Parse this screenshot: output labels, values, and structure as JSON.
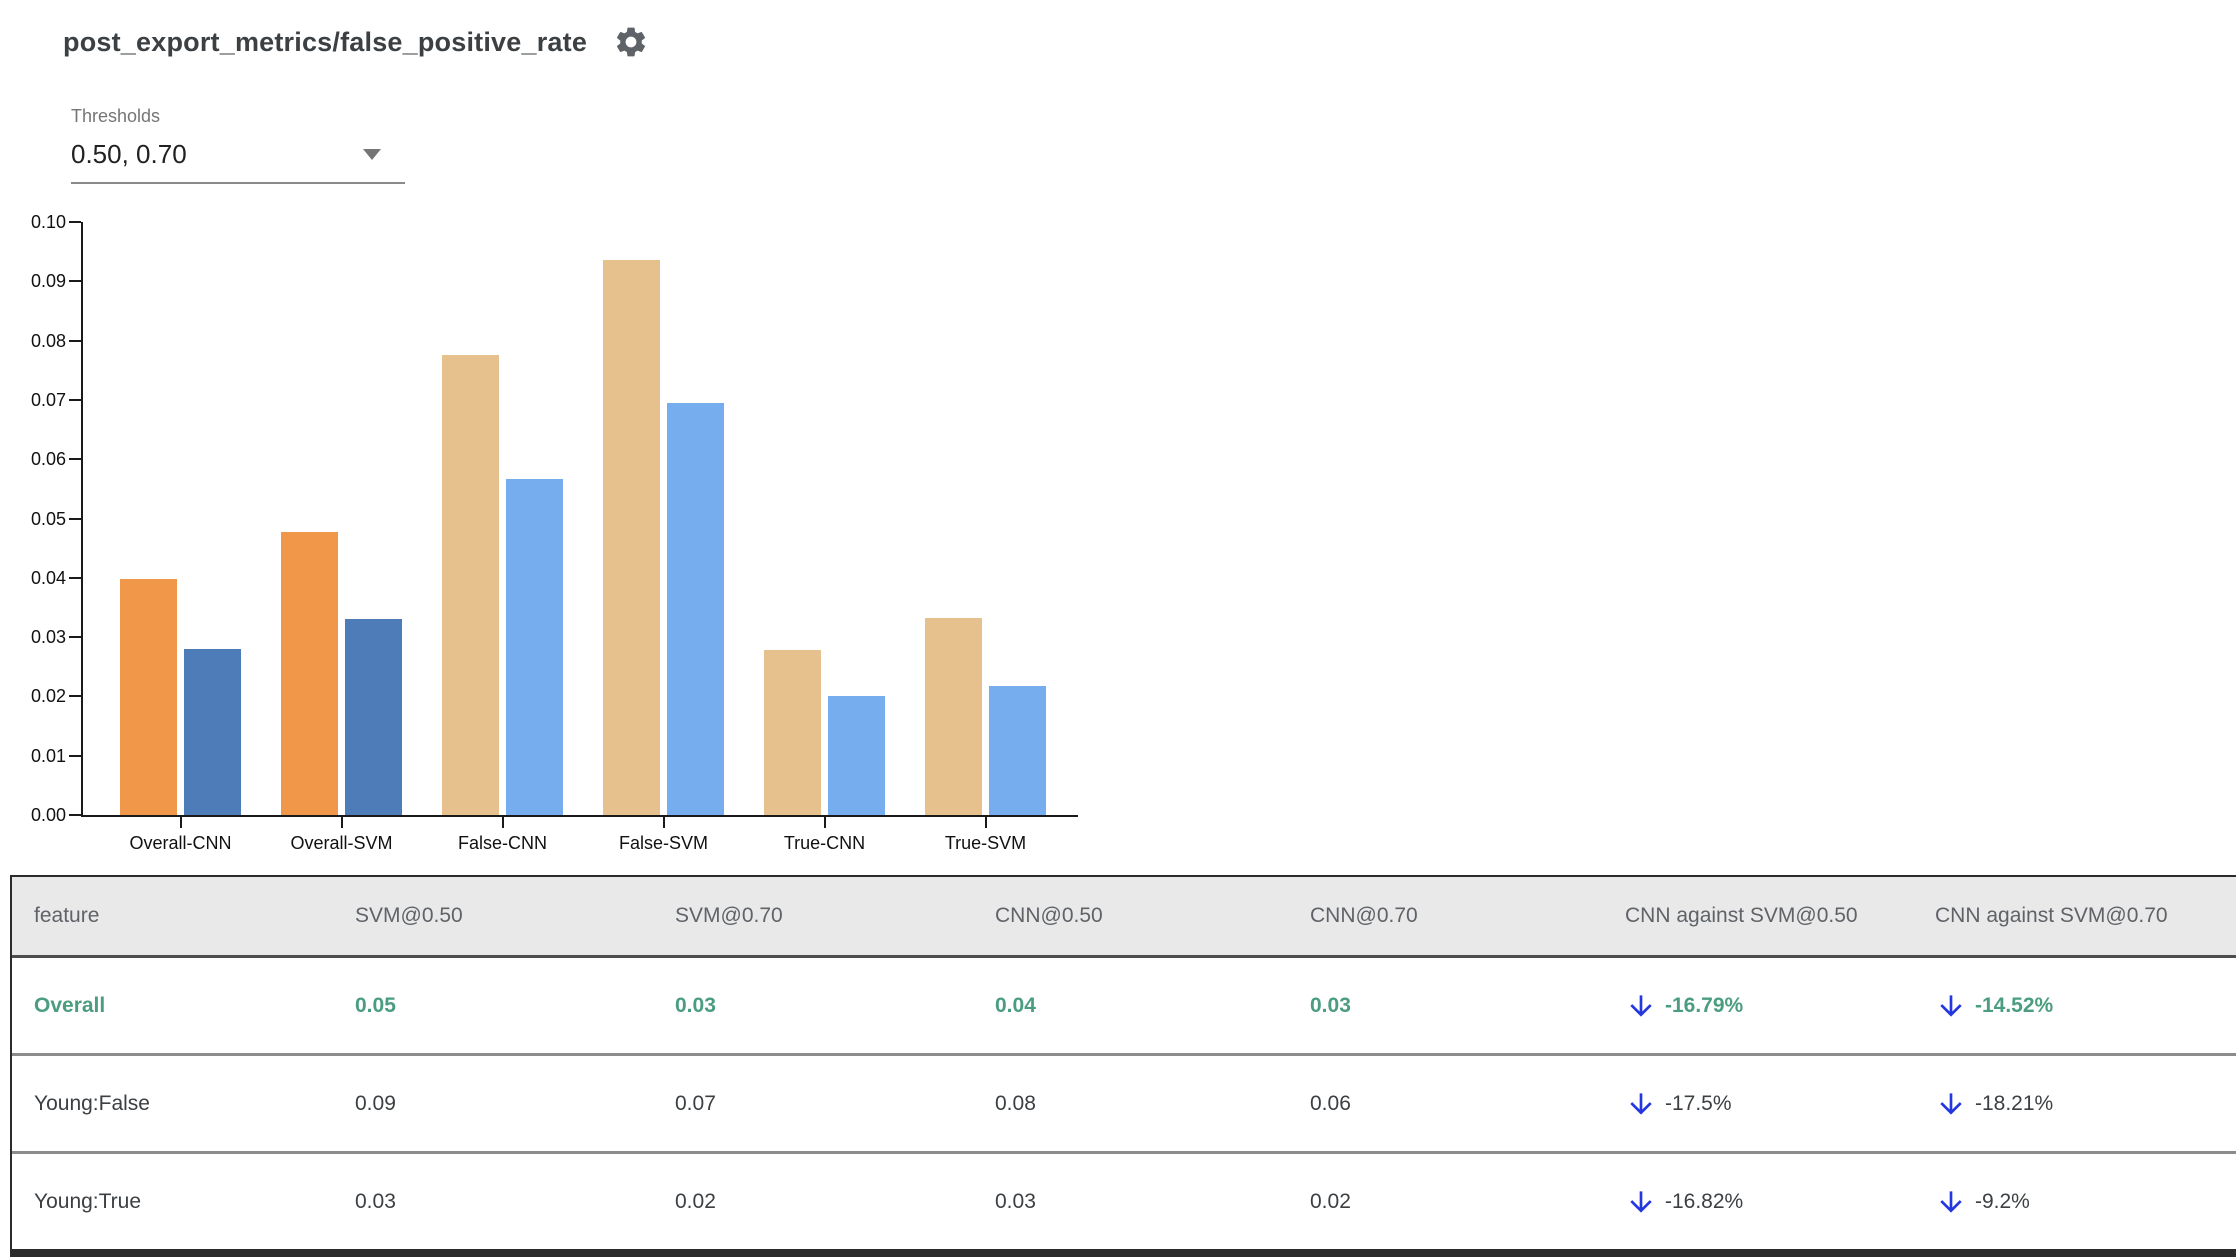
{
  "header": {
    "title": "post_export_metrics/false_positive_rate",
    "gear_icon": "settings-gear"
  },
  "thresholds": {
    "label": "Thresholds",
    "value": "0.50, 0.70"
  },
  "colors": {
    "selected_threshold_050": "#f0974a",
    "selected_threshold_070": "#4e7cb8",
    "threshold_050": "#e6c18e",
    "threshold_070": "#75adee",
    "highlight_green": "#4a9d7f",
    "arrow_blue": "#2336e0",
    "header_bg": "#e9e9e9"
  },
  "chart_data": {
    "type": "bar",
    "title": "post_export_metrics/false_positive_rate",
    "xlabel": "",
    "ylabel": "",
    "ylim": [
      0,
      0.1
    ],
    "grid": false,
    "legend": "none",
    "y_ticks": [
      "0.00",
      "0.01",
      "0.02",
      "0.03",
      "0.04",
      "0.05",
      "0.06",
      "0.07",
      "0.08",
      "0.09",
      "0.10"
    ],
    "series_note": "two bars per group: threshold 0.50 then threshold 0.70",
    "groups": [
      {
        "label": "Overall-CNN",
        "bars": [
          {
            "series": "@0.50",
            "value": 0.0398,
            "color": "#f0974a"
          },
          {
            "series": "@0.70",
            "value": 0.028,
            "color": "#4e7cb8"
          }
        ]
      },
      {
        "label": "Overall-SVM",
        "bars": [
          {
            "series": "@0.50",
            "value": 0.0477,
            "color": "#f0974a"
          },
          {
            "series": "@0.70",
            "value": 0.033,
            "color": "#4e7cb8"
          }
        ]
      },
      {
        "label": "False-CNN",
        "bars": [
          {
            "series": "@0.50",
            "value": 0.0775,
            "color": "#e6c18e"
          },
          {
            "series": "@0.70",
            "value": 0.0567,
            "color": "#75adee"
          }
        ]
      },
      {
        "label": "False-SVM",
        "bars": [
          {
            "series": "@0.50",
            "value": 0.0936,
            "color": "#e6c18e"
          },
          {
            "series": "@0.70",
            "value": 0.0694,
            "color": "#75adee"
          }
        ]
      },
      {
        "label": "True-CNN",
        "bars": [
          {
            "series": "@0.50",
            "value": 0.0278,
            "color": "#e6c18e"
          },
          {
            "series": "@0.70",
            "value": 0.02,
            "color": "#75adee"
          }
        ]
      },
      {
        "label": "True-SVM",
        "bars": [
          {
            "series": "@0.50",
            "value": 0.0333,
            "color": "#e6c18e"
          },
          {
            "series": "@0.70",
            "value": 0.0218,
            "color": "#75adee"
          }
        ]
      }
    ]
  },
  "table": {
    "columns": [
      "feature",
      "SVM@0.50",
      "SVM@0.70",
      "CNN@0.50",
      "CNN@0.70",
      "CNN against SVM@0.50",
      "CNN against SVM@0.70"
    ],
    "rows": [
      {
        "feature": "Overall",
        "highlighted": true,
        "values": [
          "0.05",
          "0.03",
          "0.04",
          "0.03"
        ],
        "comparisons": [
          {
            "direction": "down",
            "text": "-16.79%"
          },
          {
            "direction": "down",
            "text": "-14.52%"
          }
        ]
      },
      {
        "feature": "Young:False",
        "highlighted": false,
        "values": [
          "0.09",
          "0.07",
          "0.08",
          "0.06"
        ],
        "comparisons": [
          {
            "direction": "down",
            "text": "-17.5%"
          },
          {
            "direction": "down",
            "text": "-18.21%"
          }
        ]
      },
      {
        "feature": "Young:True",
        "highlighted": false,
        "values": [
          "0.03",
          "0.02",
          "0.03",
          "0.02"
        ],
        "comparisons": [
          {
            "direction": "down",
            "text": "-16.82%"
          },
          {
            "direction": "down",
            "text": "-9.2%"
          }
        ]
      }
    ]
  }
}
